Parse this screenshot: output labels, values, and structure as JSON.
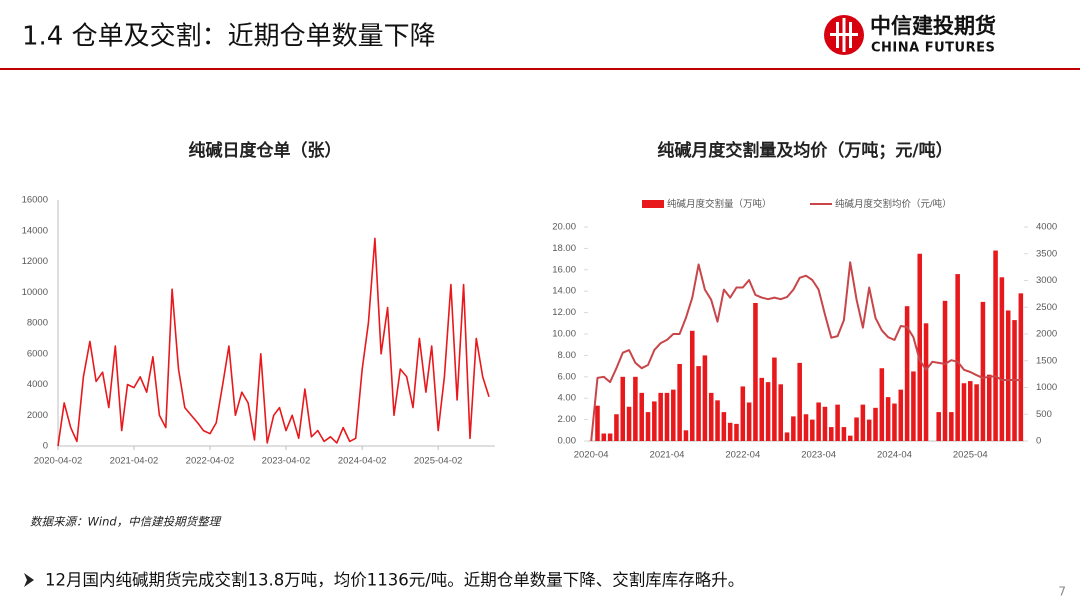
{
  "header": {
    "title": "1.4 仓单及交割：近期仓单数量下降",
    "logo_cn": "中信建投期货",
    "logo_en": "CHINA FUTURES"
  },
  "source": "数据来源：Wind，中信建投期货整理",
  "bullet": "12月国内纯碱期货完成交割13.8万吨，均价1136元/吨。近期仓单数量下降、交割库库存略升。",
  "page_number": "7",
  "chart_data": [
    {
      "type": "line",
      "title": "纯碱日度仓单（张）",
      "color": "#e8191c",
      "x": [
        "2020-04-02",
        "2020-05-02",
        "2020-06-02",
        "2020-07-02",
        "2020-08-02",
        "2020-09-02",
        "2020-10-02",
        "2020-11-02",
        "2020-12-02",
        "2021-01-02",
        "2021-02-02",
        "2021-03-02",
        "2021-04-02",
        "2021-05-02",
        "2021-06-02",
        "2021-07-02",
        "2021-08-02",
        "2021-09-02",
        "2021-10-02",
        "2021-11-02",
        "2021-12-02",
        "2022-01-02",
        "2022-02-02",
        "2022-03-02",
        "2022-04-02",
        "2022-05-02",
        "2022-06-02",
        "2022-07-02",
        "2022-08-02",
        "2022-09-02",
        "2022-10-02",
        "2022-11-02",
        "2022-12-02",
        "2023-01-02",
        "2023-02-02",
        "2023-03-02",
        "2023-04-02",
        "2023-05-02",
        "2023-06-02",
        "2023-07-02",
        "2023-08-02",
        "2023-09-02",
        "2023-10-02",
        "2023-11-02",
        "2023-12-02",
        "2024-01-02",
        "2024-02-02",
        "2024-03-02",
        "2024-04-02",
        "2024-05-02",
        "2024-06-02",
        "2024-07-02",
        "2024-08-02",
        "2024-09-02",
        "2024-10-02",
        "2024-11-02",
        "2024-12-02",
        "2025-01-02",
        "2025-02-02",
        "2025-03-02",
        "2025-04-02",
        "2025-05-02",
        "2025-06-02",
        "2025-07-02",
        "2025-08-02",
        "2025-09-02",
        "2025-10-02",
        "2025-11-02",
        "2025-12-02"
      ],
      "values": [
        0,
        2800,
        1200,
        300,
        4500,
        6800,
        4200,
        4800,
        2500,
        6500,
        1000,
        4000,
        3800,
        4500,
        3500,
        5800,
        2000,
        1200,
        10200,
        5000,
        2500,
        2000,
        1500,
        1000,
        800,
        1500,
        4000,
        6500,
        2000,
        3500,
        2800,
        400,
        6000,
        200,
        2000,
        2500,
        1000,
        2000,
        500,
        3700,
        600,
        1000,
        300,
        600,
        200,
        1200,
        300,
        500,
        5000,
        8000,
        13500,
        6000,
        9000,
        2000,
        5000,
        4500,
        2500,
        7000,
        3500,
        6500,
        1000,
        4500,
        10500,
        3000,
        10500,
        500,
        7000,
        4500,
        3200
      ],
      "xlim": [
        "2020-04-02",
        "2025-12-31"
      ],
      "xticks": [
        "2020-04-02",
        "2021-04-02",
        "2022-04-02",
        "2023-04-02",
        "2024-04-02",
        "2025-04-02"
      ],
      "ylim": [
        0,
        16000
      ],
      "yticks": [
        0,
        2000,
        4000,
        6000,
        8000,
        10000,
        12000,
        14000,
        16000
      ],
      "grid": false
    },
    {
      "type": "bar",
      "title": "纯碱月度交割量及均价（万吨；元/吨）",
      "legend": "top",
      "categories": [
        "2020-04",
        null,
        null,
        null,
        null,
        null,
        null,
        null,
        null,
        null,
        null,
        null,
        "2021-04",
        null,
        null,
        null,
        null,
        null,
        null,
        null,
        null,
        null,
        null,
        null,
        "2022-04",
        null,
        null,
        null,
        null,
        null,
        null,
        null,
        null,
        null,
        null,
        null,
        "2023-04",
        null,
        null,
        null,
        null,
        null,
        null,
        null,
        null,
        null,
        null,
        null,
        "2024-04",
        null,
        null,
        null,
        null,
        null,
        null,
        null,
        null,
        null,
        null,
        null,
        "2025-04",
        null,
        null,
        null,
        null,
        null,
        null,
        null,
        null
      ],
      "series": [
        {
          "name": "纯碱月度交割量（万吨）",
          "type": "bar",
          "color": "#e8191c",
          "values": [
            null,
            3.3,
            0.7,
            0.7,
            2.5,
            6.0,
            3.2,
            6.0,
            4.5,
            2.7,
            3.7,
            4.5,
            4.5,
            4.8,
            7.2,
            1.0,
            10.3,
            7.0,
            8.0,
            4.5,
            3.8,
            2.7,
            1.7,
            1.6,
            5.1,
            3.6,
            12.9,
            5.9,
            5.5,
            7.8,
            5.3,
            0.8,
            2.3,
            7.3,
            2.5,
            2.0,
            3.6,
            3.2,
            1.3,
            3.4,
            1.3,
            0.5,
            2.2,
            3.4,
            2.0,
            3.1,
            6.8,
            4.1,
            3.5,
            4.8,
            12.6,
            6.5,
            17.5,
            11.0,
            0,
            2.7,
            13.1,
            2.7,
            15.6,
            5.4,
            5.6,
            5.3,
            13.0,
            6.2,
            17.8,
            15.3,
            12.2,
            11.3,
            13.8
          ]
        },
        {
          "name": "纯碱月度交割均价（元/吨）",
          "type": "line",
          "axis": "y2",
          "color": "#c8464a",
          "values": [
            0,
            1180,
            1200,
            1100,
            1360,
            1650,
            1700,
            1460,
            1360,
            1420,
            1700,
            1830,
            1890,
            2000,
            2000,
            2300,
            2680,
            3300,
            2830,
            2640,
            2230,
            2830,
            2680,
            2870,
            2870,
            3010,
            2730,
            2680,
            2650,
            2680,
            2650,
            2690,
            2830,
            3050,
            3090,
            3010,
            2830,
            2360,
            1930,
            1960,
            2260,
            3340,
            2640,
            2120,
            2870,
            2300,
            2070,
            1940,
            1890,
            2150,
            2130,
            1940,
            1510,
            1330,
            1480,
            1460,
            1440,
            1510,
            1480,
            1330,
            1290,
            1230,
            1180,
            1200,
            1210,
            1140,
            1140,
            1140,
            1136
          ]
        }
      ],
      "ylim": [
        0,
        20
      ],
      "yticks": [
        {
          "value": 0,
          "label": "0.00"
        },
        {
          "value": 2,
          "label": "2.00"
        },
        {
          "value": 4,
          "label": "4.00"
        },
        {
          "value": 6,
          "label": "6.00"
        },
        {
          "value": 8,
          "label": "8.00"
        },
        {
          "value": 10,
          "label": "10.00"
        },
        {
          "value": 12,
          "label": "12.00"
        },
        {
          "value": 14,
          "label": "14.00"
        },
        {
          "value": 16,
          "label": "16.00"
        },
        {
          "value": 18,
          "label": "18.00"
        },
        {
          "value": 20,
          "label": "20.00"
        }
      ],
      "y2lim": [
        0,
        4000
      ],
      "y2ticks": [
        0,
        500,
        1000,
        1500,
        2000,
        2500,
        3000,
        3500,
        4000
      ],
      "grid": false
    }
  ]
}
